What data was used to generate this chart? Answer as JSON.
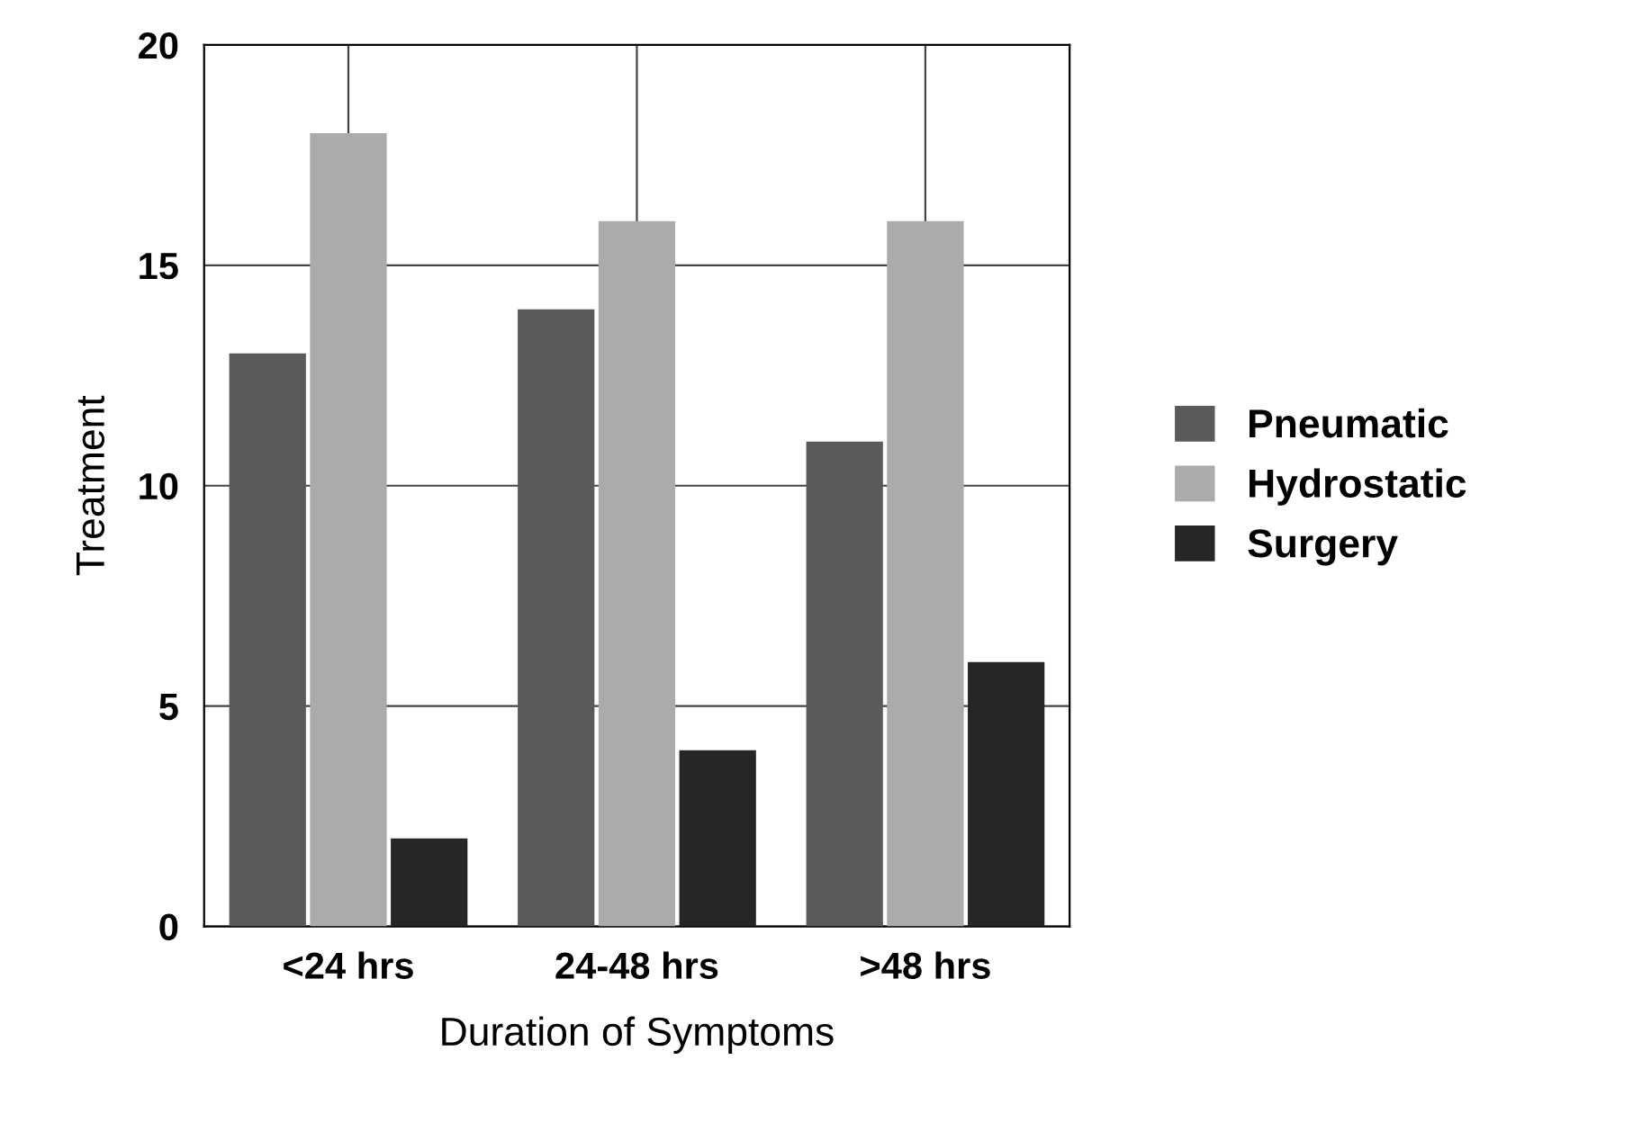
{
  "chart_data": {
    "type": "bar",
    "xlabel": "Duration of Symptoms",
    "ylabel": "Treatment",
    "categories": [
      "<24 hrs",
      "24-48 hrs",
      ">48 hrs"
    ],
    "series": [
      {
        "name": "Pneumatic",
        "color": "#5a5a5a",
        "values": [
          13,
          14,
          11
        ]
      },
      {
        "name": "Hydrostatic",
        "color": "#ababab",
        "values": [
          18,
          16,
          16
        ]
      },
      {
        "name": "Surgery",
        "color": "#262626",
        "values": [
          2,
          4,
          6
        ]
      }
    ],
    "ylim": [
      0,
      20
    ],
    "yticks": [
      0,
      5,
      10,
      15,
      20
    ],
    "grid": true,
    "legend": "right"
  }
}
